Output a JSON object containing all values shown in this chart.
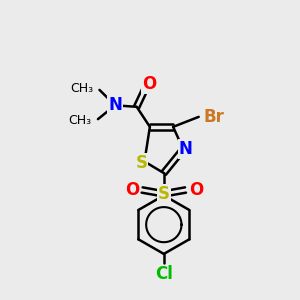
{
  "bg_color": "#ebebeb",
  "colors": {
    "S": "#b8b800",
    "N": "#0000ff",
    "O": "#ff0000",
    "Br": "#cc7722",
    "Cl": "#00bb00",
    "C": "#000000",
    "bond": "#000000"
  }
}
